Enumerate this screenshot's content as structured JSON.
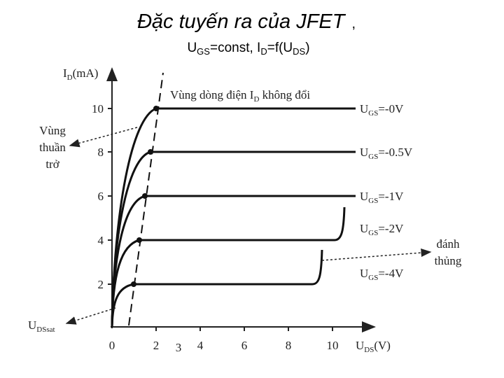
{
  "title": {
    "text": "Đặc tuyến ra của JFET",
    "comma": ","
  },
  "subtitle": [
    "U",
    "GS",
    "=const, I",
    "D",
    "=f(U",
    "DS",
    ")"
  ],
  "y_axis": {
    "label": [
      "I",
      "D",
      "(mA)"
    ],
    "ticks": [
      "10",
      "8",
      "6",
      "4",
      "2"
    ]
  },
  "x_axis": {
    "label": [
      "U",
      "DS",
      "(V)"
    ],
    "ticks": [
      "0",
      "2",
      "4",
      "6",
      "8",
      "10"
    ],
    "extra_tick": "3"
  },
  "region_label": [
    "Vùng dòng điện I",
    "D",
    " không đổi"
  ],
  "curves": [
    [
      "U",
      "GS",
      "=-0V"
    ],
    [
      "U",
      "GS",
      "=-0.5V"
    ],
    [
      "U",
      "GS",
      "=-1V"
    ],
    [
      "U",
      "GS",
      "=-2V"
    ],
    [
      "U",
      "GS",
      "=-4V"
    ]
  ],
  "ohmic_label": [
    "Vùng",
    "thuần",
    "trở"
  ],
  "breakdown_label": [
    "đánh",
    "thủng"
  ],
  "saturation_label": [
    "U",
    "DSsat"
  ]
}
